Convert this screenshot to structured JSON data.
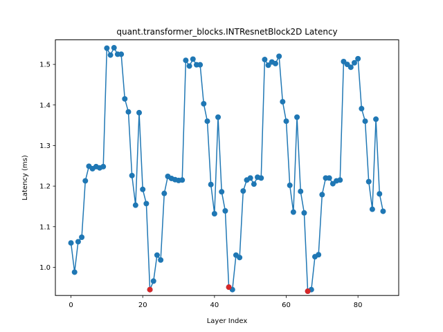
{
  "chart_data": {
    "type": "line",
    "title": "quant.transformer_blocks.INTResnetBlock2D Latency",
    "xlabel": "Layer Index",
    "ylabel": "Latency (ms)",
    "xlim": [
      -4.35,
      91.35
    ],
    "ylim": [
      0.9305,
      1.5605
    ],
    "xticks": [
      0,
      20,
      40,
      60,
      80
    ],
    "yticks": [
      1.0,
      1.1,
      1.2,
      1.3,
      1.4,
      1.5
    ],
    "ytick_labels": [
      "1.0",
      "1.1",
      "1.2",
      "1.3",
      "1.4",
      "1.5"
    ],
    "grid": false,
    "series": [
      {
        "line_color": "#1f77b4",
        "marker_color": "#1f77b4",
        "x": [
          0,
          1,
          2,
          3,
          4,
          5,
          6,
          7,
          8,
          9,
          10,
          11,
          12,
          13,
          14,
          15,
          16,
          17,
          18,
          19,
          20,
          21,
          22,
          23,
          24,
          25,
          26,
          27,
          28,
          29,
          30,
          31,
          32,
          33,
          34,
          35,
          36,
          37,
          38,
          39,
          40,
          41,
          42,
          43,
          44,
          45,
          46,
          47,
          48,
          49,
          50,
          51,
          52,
          53,
          54,
          55,
          56,
          57,
          58,
          59,
          60,
          61,
          62,
          63,
          64,
          65,
          66,
          67,
          68,
          69,
          70,
          71,
          72,
          73,
          74,
          75,
          76,
          77,
          78,
          79,
          80,
          81,
          82,
          83,
          84,
          85,
          86,
          87
        ],
        "values": [
          1.06,
          0.988,
          1.063,
          1.074,
          1.213,
          1.249,
          1.243,
          1.248,
          1.245,
          1.248,
          1.54,
          1.523,
          1.541,
          1.525,
          1.525,
          1.415,
          1.383,
          1.226,
          1.153,
          1.381,
          1.192,
          1.157,
          0.945,
          0.966,
          1.03,
          1.018,
          1.182,
          1.224,
          1.219,
          1.216,
          1.214,
          1.215,
          1.51,
          1.496,
          1.513,
          1.499,
          1.499,
          1.403,
          1.36,
          1.204,
          1.132,
          1.37,
          1.186,
          1.139,
          0.951,
          0.945,
          1.03,
          1.024,
          1.188,
          1.215,
          1.22,
          1.205,
          1.222,
          1.22,
          1.512,
          1.498,
          1.506,
          1.502,
          1.52,
          1.408,
          1.36,
          1.202,
          1.136,
          1.37,
          1.187,
          1.134,
          0.941,
          0.945,
          1.026,
          1.031,
          1.179,
          1.22,
          1.22,
          1.206,
          1.213,
          1.215,
          1.507,
          1.5,
          1.493,
          1.504,
          1.514,
          1.391,
          1.36,
          1.211,
          1.143,
          1.365,
          1.181,
          1.138
        ]
      }
    ],
    "highlight_points": {
      "color": "#d62728",
      "x": [
        22,
        44,
        66
      ],
      "values": [
        0.945,
        0.951,
        0.941
      ]
    }
  }
}
